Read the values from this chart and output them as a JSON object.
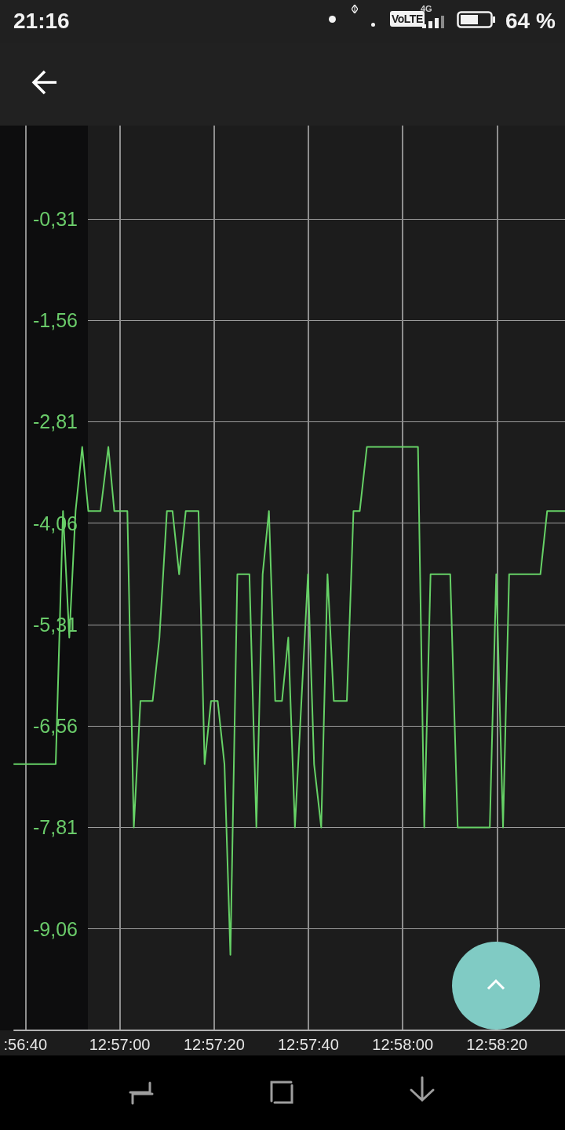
{
  "chart_data": {
    "type": "line",
    "annotations": [
      "21:16",
      "VoLTE",
      "4G",
      "64 %"
    ],
    "x": [
      12.94378,
      12.94623,
      12.94666,
      12.94703,
      12.9474,
      12.94779,
      12.94815,
      12.94887,
      12.94933,
      12.94968,
      12.95045,
      12.95083,
      12.95122,
      12.95194,
      12.95234,
      12.95278,
      12.95311,
      12.9535,
      12.95389,
      12.95464,
      12.955,
      12.95538,
      12.95577,
      12.95617,
      12.95652,
      12.95693,
      12.95764,
      12.95805,
      12.95842,
      12.95879,
      12.95916,
      12.95956,
      12.95993,
      12.96032,
      12.96109,
      12.96145,
      12.96187,
      12.96224,
      12.96261,
      12.96338,
      12.96377,
      12.96414,
      12.96456,
      12.96757,
      12.96794,
      12.96831,
      12.96947,
      12.96991,
      12.9718,
      12.97218,
      12.97258,
      12.97294,
      12.97478,
      12.97518,
      12.97623
    ],
    "values": [
      -7.03,
      -7.03,
      -3.91,
      -5.47,
      -3.91,
      -3.12,
      -3.91,
      -3.91,
      -3.12,
      -3.91,
      -3.91,
      -7.81,
      -6.25,
      -6.25,
      -5.47,
      -3.91,
      -3.91,
      -4.69,
      -3.91,
      -3.91,
      -7.03,
      -6.25,
      -6.25,
      -7.03,
      -9.38,
      -4.69,
      -4.69,
      -7.81,
      -4.69,
      -3.91,
      -6.25,
      -6.25,
      -5.47,
      -7.81,
      -4.69,
      -7.03,
      -7.81,
      -4.69,
      -6.25,
      -6.25,
      -3.91,
      -3.91,
      -3.12,
      -3.12,
      -7.81,
      -4.69,
      -4.69,
      -7.81,
      -7.81,
      -4.69,
      -7.81,
      -4.69,
      -4.69,
      -3.91,
      -3.91
    ],
    "color": "#66d166",
    "xlim": [
      12.94378,
      12.97623
    ],
    "xticks": [
      {
        "value": 12.94444,
        "label": ":56:40"
      },
      {
        "value": 12.95,
        "label": "12:57:00"
      },
      {
        "value": 12.95556,
        "label": "12:57:20"
      },
      {
        "value": 12.96111,
        "label": "12:57:40"
      },
      {
        "value": 12.96667,
        "label": "12:58:00"
      },
      {
        "value": 12.97222,
        "label": "12:58:20"
      }
    ],
    "ylim": [
      -10.31,
      0.84
    ],
    "yticks": [
      {
        "value": -9.06,
        "label": "-9,06"
      },
      {
        "value": -7.81,
        "label": "-7,81"
      },
      {
        "value": -6.56,
        "label": "-6,56"
      },
      {
        "value": -5.31,
        "label": "-5,31"
      },
      {
        "value": -4.06,
        "label": "-4,06"
      },
      {
        "value": -2.81,
        "label": "-2,81"
      },
      {
        "value": -1.56,
        "label": "-1,56"
      },
      {
        "value": -0.31,
        "label": "-0,31"
      }
    ],
    "grid": true
  }
}
